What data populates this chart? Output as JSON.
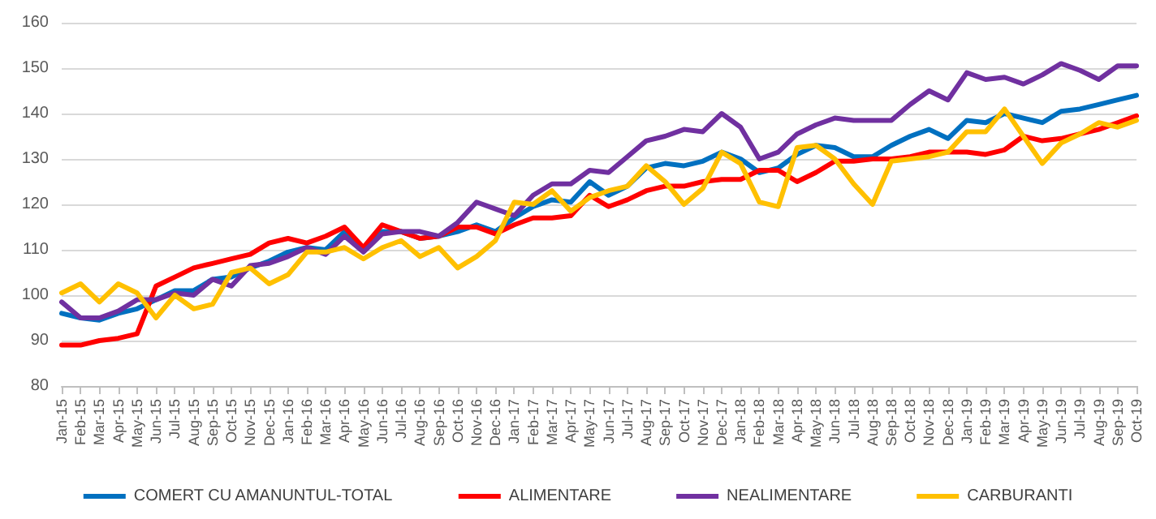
{
  "chart_data": {
    "type": "line",
    "categories": [
      "Jan-15",
      "Feb-15",
      "Mar-15",
      "Apr-15",
      "May-15",
      "Jun-15",
      "Jul-15",
      "Aug-15",
      "Sep-15",
      "Oct-15",
      "Nov-15",
      "Dec-15",
      "Jan-16",
      "Feb-16",
      "Mar-16",
      "Apr-16",
      "May-16",
      "Jun-16",
      "Jul-16",
      "Aug-16",
      "Sep-16",
      "Oct-16",
      "Nov-16",
      "Dec-16",
      "Jan-17",
      "Feb-17",
      "Mar-17",
      "Apr-17",
      "May-17",
      "Jun-17",
      "Jul-17",
      "Aug-17",
      "Sep-17",
      "Oct-17",
      "Nov-17",
      "Dec-17",
      "Jan-18",
      "Feb-18",
      "Mar-18",
      "Apr-18",
      "May-18",
      "Jun-18",
      "Jul-18",
      "Aug-18",
      "Sep-18",
      "Oct-18",
      "Nov-18",
      "Dec-18",
      "Jan-19",
      "Feb-19",
      "Mar-19",
      "Apr-19",
      "May-19",
      "Jun-19",
      "Jul-19",
      "Aug-19",
      "Sep-19",
      "Oct-19"
    ],
    "series": [
      {
        "name": "COMERT CU AMANUNTUL-TOTAL",
        "color": "#0070c0",
        "values": [
          96,
          95,
          94.5,
          96,
          97,
          99,
          101,
          101,
          103.5,
          104,
          106,
          107.5,
          109.5,
          110.5,
          110,
          114,
          110,
          114,
          114,
          112.5,
          113,
          114,
          115.5,
          114,
          117,
          119.5,
          121,
          120.5,
          125,
          122,
          124,
          128,
          129,
          128.5,
          129.5,
          131.5,
          130,
          127,
          128,
          131,
          133,
          132.5,
          130.5,
          130.5,
          133,
          135,
          136.5,
          134.5,
          138.5,
          138,
          140,
          139,
          138,
          140.5,
          141,
          142,
          143,
          144
        ]
      },
      {
        "name": "ALIMENTARE",
        "color": "#ff0000",
        "values": [
          89,
          89,
          90,
          90.5,
          91.5,
          102,
          104,
          106,
          107,
          108,
          109,
          111.5,
          112.5,
          111.5,
          113,
          115,
          110.5,
          115.5,
          114,
          112.5,
          113,
          115,
          115,
          113.5,
          115.5,
          117,
          117,
          117.5,
          122,
          119.5,
          121,
          123,
          124,
          124,
          125,
          125.5,
          125.5,
          127.5,
          127.5,
          125,
          127,
          129.5,
          129.5,
          130,
          130,
          130.5,
          131.5,
          131.5,
          131.5,
          131,
          132,
          135,
          134,
          134.5,
          135.5,
          136.5,
          138,
          139.5
        ]
      },
      {
        "name": "NEALIMENTARE",
        "color": "#7030a0",
        "values": [
          98.5,
          95,
          95,
          96.5,
          99,
          99,
          100.5,
          100,
          103.5,
          102,
          106.5,
          107,
          108.5,
          110.5,
          109,
          113,
          109.5,
          113.5,
          114,
          114,
          113,
          116,
          120.5,
          119,
          117.5,
          122,
          124.5,
          124.5,
          127.5,
          127,
          130.5,
          134,
          135,
          136.5,
          136,
          140,
          137,
          130,
          131.5,
          135.5,
          137.5,
          139,
          138.5,
          138.5,
          138.5,
          142,
          145,
          143,
          149,
          147.5,
          148,
          146.5,
          148.5,
          151,
          149.5,
          147.5,
          150.5,
          150.5
        ]
      },
      {
        "name": "CARBURANTI",
        "color": "#ffc000",
        "values": [
          100.5,
          102.5,
          98.5,
          102.5,
          100.5,
          95,
          100,
          97,
          98,
          105,
          106,
          102.5,
          104.5,
          109.5,
          109.5,
          110.5,
          108,
          110.5,
          112,
          108.5,
          110.5,
          106,
          108.5,
          112,
          120.5,
          120,
          123,
          118.5,
          121.5,
          123,
          124,
          128.5,
          125,
          120,
          123.5,
          131.5,
          129,
          120.5,
          119.5,
          132.5,
          133,
          130,
          124.5,
          120,
          129.5,
          130,
          130.5,
          131.5,
          136,
          136,
          141,
          135,
          129,
          133.5,
          135.5,
          138,
          137,
          138.5
        ]
      }
    ],
    "ylim": [
      80,
      160
    ],
    "yticks": [
      80,
      90,
      100,
      110,
      120,
      130,
      140,
      150,
      160
    ],
    "grid": "y",
    "legend": "bottom",
    "marker": "none",
    "line_style": "solid"
  }
}
